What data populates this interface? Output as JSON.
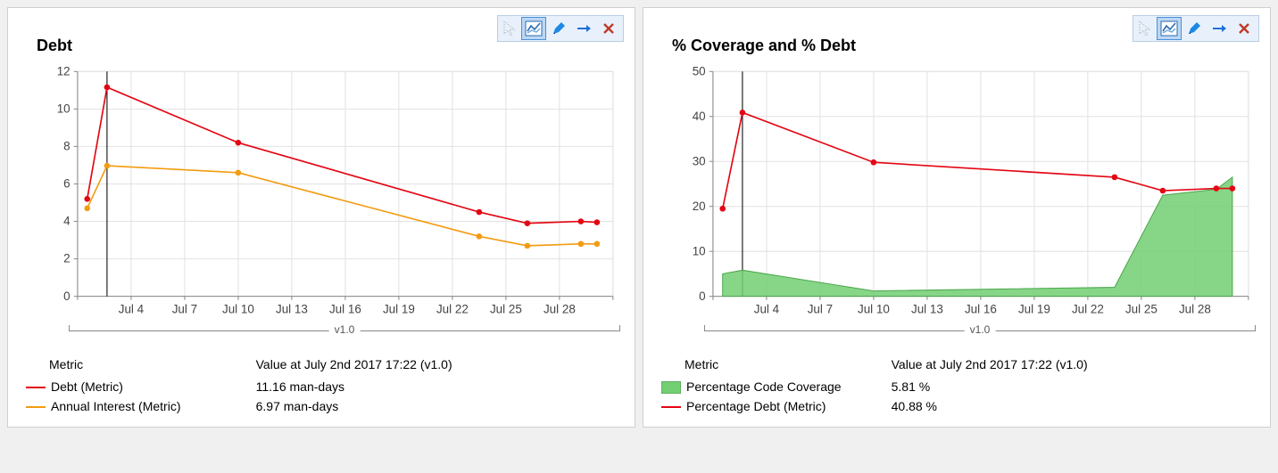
{
  "panels": [
    {
      "id": "debt",
      "title": "Debt",
      "chart": {
        "type": "line",
        "background_color": "#ffffff",
        "grid_color": "#e2e2e2",
        "axis_color": "#888888",
        "label_fontsize": 13,
        "x": {
          "categories": [
            "",
            "Jul 4",
            "Jul 7",
            "Jul 10",
            "Jul 13",
            "Jul 16",
            "Jul 19",
            "Jul 22",
            "Jul 25",
            "Jul 28",
            ""
          ],
          "ticks": [
            0,
            1,
            2,
            3,
            4,
            5,
            6,
            7,
            8,
            9,
            10
          ],
          "lim": [
            0,
            10
          ]
        },
        "y": {
          "lim": [
            0,
            12
          ],
          "ticks": [
            0,
            2,
            4,
            6,
            8,
            10,
            12
          ]
        },
        "vline_x": 0.55,
        "bracket_label": "v1.0",
        "series": [
          {
            "name": "Debt (Metric)",
            "color": "#e30613",
            "line_width": 1.6,
            "marker": "circle",
            "marker_size": 3.2,
            "points": [
              [
                0.18,
                5.2
              ],
              [
                0.55,
                11.16
              ],
              [
                3,
                8.2
              ],
              [
                7.5,
                4.5
              ],
              [
                8.4,
                3.9
              ],
              [
                9.4,
                4.0
              ],
              [
                9.7,
                3.95
              ]
            ]
          },
          {
            "name": "Annual Interest (Metric)",
            "color": "#f39c12",
            "line_width": 1.6,
            "marker": "circle",
            "marker_size": 3.2,
            "points": [
              [
                0.18,
                4.7
              ],
              [
                0.55,
                6.97
              ],
              [
                3,
                6.6
              ],
              [
                7.5,
                3.2
              ],
              [
                8.4,
                2.7
              ],
              [
                9.4,
                2.8
              ],
              [
                9.7,
                2.8
              ]
            ]
          }
        ]
      },
      "legend": {
        "headers": [
          "Metric",
          "Value at July 2nd 2017  17:22  (v1.0)"
        ],
        "rows": [
          {
            "swatch_type": "line",
            "swatch_color": "#e30613",
            "name": "Debt (Metric)",
            "value": "11.16 man-days"
          },
          {
            "swatch_type": "line",
            "swatch_color": "#f39c12",
            "name": "Annual Interest (Metric)",
            "value": "6.97 man-days"
          }
        ]
      }
    },
    {
      "id": "coverage",
      "title": "% Coverage and % Debt",
      "chart": {
        "type": "line+area",
        "background_color": "#ffffff",
        "grid_color": "#e2e2e2",
        "axis_color": "#888888",
        "label_fontsize": 13,
        "x": {
          "categories": [
            "",
            "Jul 4",
            "Jul 7",
            "Jul 10",
            "Jul 13",
            "Jul 16",
            "Jul 19",
            "Jul 22",
            "Jul 25",
            "Jul 28",
            ""
          ],
          "ticks": [
            0,
            1,
            2,
            3,
            4,
            5,
            6,
            7,
            8,
            9,
            10
          ],
          "lim": [
            0,
            10
          ]
        },
        "y": {
          "lim": [
            0,
            50
          ],
          "ticks": [
            0,
            10,
            20,
            30,
            40,
            50
          ]
        },
        "vline_x": 0.55,
        "bracket_label": "v1.0",
        "series": [
          {
            "name": "Percentage Code Coverage",
            "type": "area",
            "fill_color": "#72cf72",
            "fill_opacity": 0.85,
            "stroke_color": "#4da64d",
            "line_width": 1,
            "points": [
              [
                0.18,
                5.0
              ],
              [
                0.55,
                5.81
              ],
              [
                3,
                1.2
              ],
              [
                7.5,
                2.0
              ],
              [
                8.4,
                22.5
              ],
              [
                9.4,
                23.8
              ],
              [
                9.7,
                26.5
              ]
            ]
          },
          {
            "name": "Percentage Debt (Metric)",
            "type": "line",
            "color": "#e30613",
            "line_width": 1.6,
            "marker": "circle",
            "marker_size": 3.2,
            "points": [
              [
                0.18,
                19.5
              ],
              [
                0.55,
                40.88
              ],
              [
                3,
                29.8
              ],
              [
                7.5,
                26.5
              ],
              [
                8.4,
                23.5
              ],
              [
                9.4,
                24.0
              ],
              [
                9.7,
                24.0
              ]
            ]
          }
        ]
      },
      "legend": {
        "headers": [
          "Metric",
          "Value at July 2nd 2017  17:22  (v1.0)"
        ],
        "rows": [
          {
            "swatch_type": "area",
            "swatch_color": "#72cf72",
            "name": "Percentage Code Coverage",
            "value": "5.81 %"
          },
          {
            "swatch_type": "line",
            "swatch_color": "#e30613",
            "name": "Percentage Debt (Metric)",
            "value": "40.88 %"
          }
        ]
      }
    }
  ],
  "toolbar": {
    "buttons": [
      {
        "name": "cursor-ghost-icon",
        "active": false
      },
      {
        "name": "chart-tool-icon",
        "active": true
      },
      {
        "name": "pencil-icon",
        "active": false
      },
      {
        "name": "arrow-right-icon",
        "active": false
      },
      {
        "name": "close-icon",
        "active": false
      }
    ]
  }
}
